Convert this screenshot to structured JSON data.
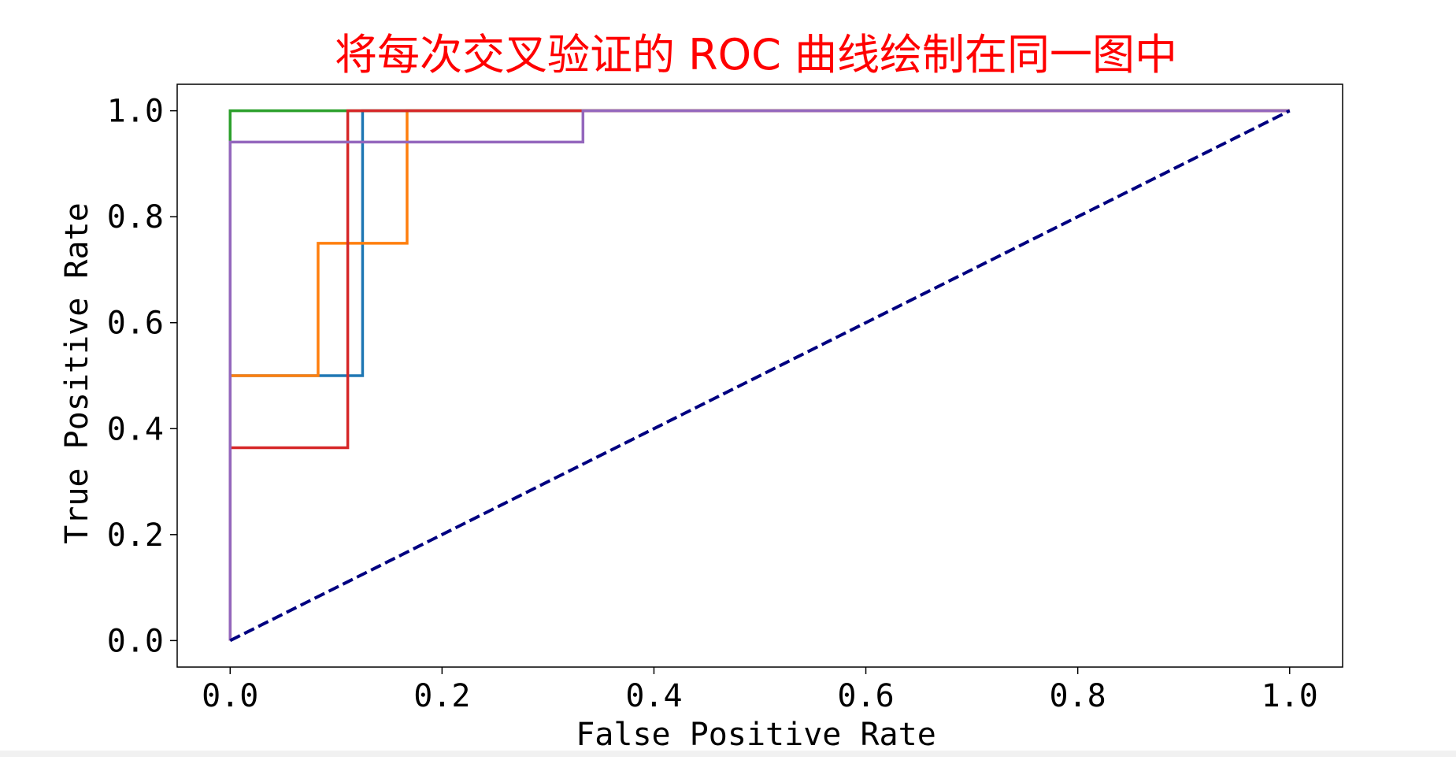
{
  "chart_data": {
    "type": "line",
    "title": "将每次交叉验证的 ROC 曲线绘制在同一图中",
    "title_color": "#ff0000",
    "xlabel": "False Positive Rate",
    "ylabel": "True Positive Rate",
    "xlim": [
      -0.05,
      1.05
    ],
    "ylim": [
      -0.05,
      1.05
    ],
    "xticks": [
      0.0,
      0.2,
      0.4,
      0.6,
      0.8,
      1.0
    ],
    "xtick_labels": [
      "0.0",
      "0.2",
      "0.4",
      "0.6",
      "0.8",
      "1.0"
    ],
    "yticks": [
      0.0,
      0.2,
      0.4,
      0.6,
      0.8,
      1.0
    ],
    "ytick_labels": [
      "0.0",
      "0.2",
      "0.4",
      "0.6",
      "0.8",
      "1.0"
    ],
    "grid": false,
    "legend": null,
    "series": [
      {
        "color": "#1f77b4",
        "style": "solid",
        "x": [
          0.0,
          0.0,
          0.0,
          0.125,
          0.125,
          1.0
        ],
        "y": [
          0.0,
          0.0,
          0.5,
          0.5,
          1.0,
          1.0
        ]
      },
      {
        "color": "#ff7f0e",
        "style": "solid",
        "x": [
          0.0,
          0.0,
          0.0,
          0.083,
          0.083,
          0.167,
          0.167,
          1.0
        ],
        "y": [
          0.0,
          0.0,
          0.5,
          0.5,
          0.75,
          0.75,
          1.0,
          1.0
        ]
      },
      {
        "color": "#2ca02c",
        "style": "solid",
        "x": [
          0.0,
          0.0,
          0.0,
          1.0
        ],
        "y": [
          0.0,
          0.0,
          1.0,
          1.0
        ]
      },
      {
        "color": "#d62728",
        "style": "solid",
        "x": [
          0.0,
          0.0,
          0.0,
          0.111,
          0.111,
          1.0
        ],
        "y": [
          0.0,
          0.0,
          0.364,
          0.364,
          1.0,
          1.0
        ]
      },
      {
        "color": "#9467bd",
        "style": "solid",
        "x": [
          0.0,
          0.0,
          0.0,
          0.333,
          0.333,
          1.0
        ],
        "y": [
          0.0,
          0.0,
          0.941,
          0.941,
          1.0,
          1.0
        ]
      },
      {
        "color": "#000080",
        "style": "dashed",
        "x": [
          0.0,
          1.0
        ],
        "y": [
          0.0,
          1.0
        ]
      }
    ]
  }
}
